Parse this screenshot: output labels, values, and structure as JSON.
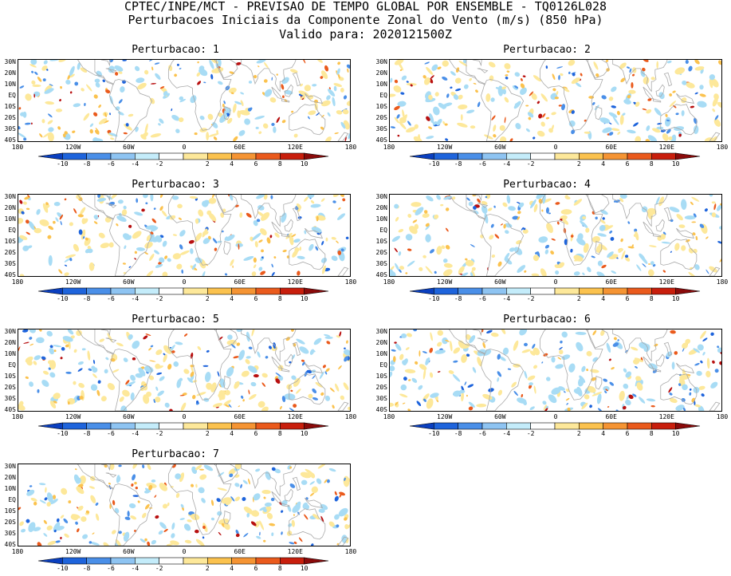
{
  "header": {
    "line1": "CPTEC/INPE/MCT - PREVISAO DE TEMPO GLOBAL POR ENSEMBLE - TQ0126L028",
    "line2": "Perturbacoes Iniciais da Componente Zonal do Vento (m/s) (850 hPa)",
    "line3": "Valido para: 2020121500Z"
  },
  "axes": {
    "lat_labels": [
      "30N",
      "20N",
      "10N",
      "EQ",
      "10S",
      "20S",
      "30S",
      "40S"
    ],
    "lon_labels": [
      "180",
      "120W",
      "60W",
      "0",
      "60E",
      "120E",
      "180"
    ]
  },
  "colorbar": {
    "labels": [
      "-10",
      "-8",
      "-6",
      "-4",
      "-2",
      "2",
      "4",
      "6",
      "8",
      "10"
    ],
    "colors": [
      "#0a3fbf",
      "#1e64dc",
      "#4a8fe8",
      "#8ec4f2",
      "#c4ecfa",
      "#ffffff",
      "#fde89a",
      "#fbc24e",
      "#f59433",
      "#ea5a1c",
      "#c81e0c",
      "#8a0a0a"
    ]
  },
  "map_colors": {
    "land_outline": "#a9a9a9",
    "neg_strong": "#1e64dc",
    "neg_medium": "#4a8fe8",
    "neg_weak": "#a8dcf5",
    "pos_weak": "#fde89a",
    "pos_medium": "#fbc24e",
    "pos_strong": "#ea5a1c",
    "pos_extreme": "#b81010"
  },
  "panels": [
    {
      "title": "Perturbacao: 1"
    },
    {
      "title": "Perturbacao: 2"
    },
    {
      "title": "Perturbacao: 3"
    },
    {
      "title": "Perturbacao: 4"
    },
    {
      "title": "Perturbacao: 5"
    },
    {
      "title": "Perturbacao: 6"
    },
    {
      "title": "Perturbacao: 7"
    }
  ]
}
